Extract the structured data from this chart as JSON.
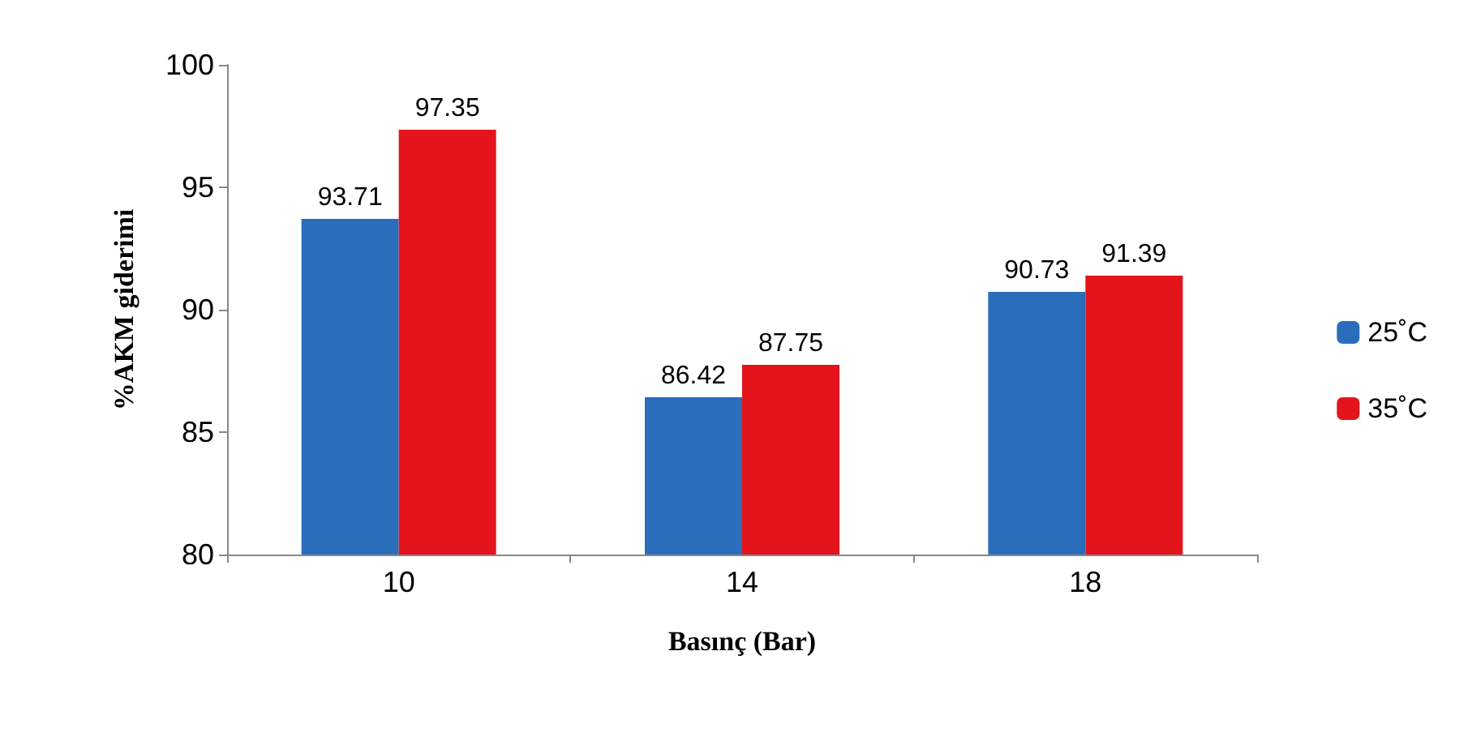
{
  "chart_data": {
    "type": "bar",
    "xlabel": "Basınç (Bar)",
    "ylabel": "%AKM giderimi",
    "categories": [
      "10",
      "14",
      "18"
    ],
    "series": [
      {
        "name": "25˚C",
        "color": "#2a6ebb",
        "values": [
          93.71,
          86.42,
          90.73
        ]
      },
      {
        "name": "35˚C",
        "color": "#e3141b",
        "values": [
          97.35,
          87.75,
          91.39
        ]
      }
    ],
    "ylim": [
      80,
      100
    ],
    "yticks": [
      80,
      85,
      90,
      95,
      100
    ],
    "grid": false,
    "legend": "right",
    "data_labels": true
  }
}
